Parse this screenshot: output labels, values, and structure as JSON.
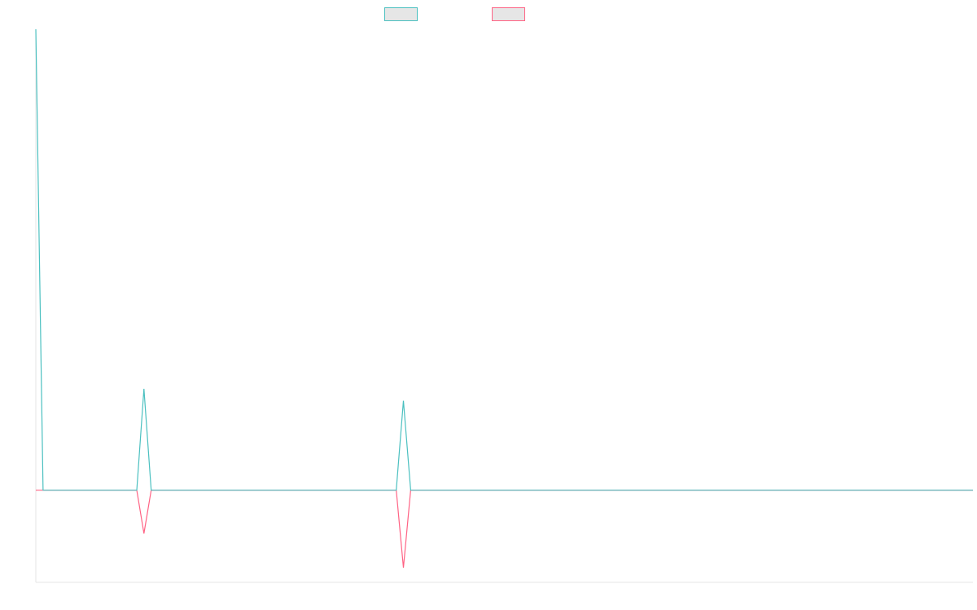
{
  "chart_data": {
    "type": "line",
    "title": "",
    "xlabel": "",
    "ylabel": "",
    "grid": false,
    "legend_position": "top-center",
    "legend_entries_visible_text": false,
    "x_count": 131,
    "ylim": [
      -100,
      500
    ],
    "series": [
      {
        "color": "#4bc0c0",
        "fill": "#e6e6e6",
        "points": [
          [
            0,
            500
          ],
          [
            1,
            0
          ],
          [
            14,
            0
          ],
          [
            15,
            110
          ],
          [
            16,
            0
          ],
          [
            50,
            0
          ],
          [
            51,
            97
          ],
          [
            52,
            0
          ],
          [
            130,
            0
          ]
        ]
      },
      {
        "color": "#ff6384",
        "fill": "#e6e6e6",
        "points": [
          [
            0,
            0
          ],
          [
            14,
            0
          ],
          [
            15,
            -47
          ],
          [
            16,
            0
          ],
          [
            50,
            0
          ],
          [
            51,
            -84
          ],
          [
            52,
            0
          ],
          [
            130,
            0
          ]
        ]
      }
    ]
  }
}
